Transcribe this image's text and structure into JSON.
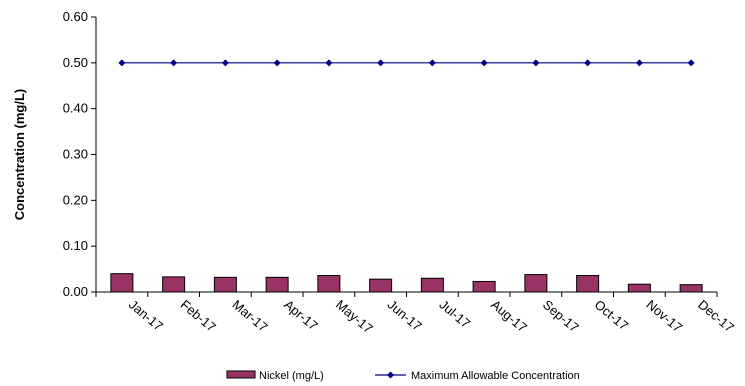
{
  "chart_data": {
    "type": "bar",
    "categories": [
      "Jan-17",
      "Feb-17",
      "Mar-17",
      "Apr-17",
      "May-17",
      "Jun-17",
      "Jul-17",
      "Aug-17",
      "Sep-17",
      "Oct-17",
      "Nov-17",
      "Dec-17"
    ],
    "series": [
      {
        "name": "Nickel (mg/L)",
        "type": "bar",
        "color": "#993366",
        "values": [
          0.04,
          0.033,
          0.032,
          0.032,
          0.036,
          0.028,
          0.03,
          0.023,
          0.038,
          0.036,
          0.017,
          0.016
        ]
      },
      {
        "name": "Maximum Allowable Concentration",
        "type": "line",
        "color": "#000080",
        "marker": "diamond",
        "values": [
          0.5,
          0.5,
          0.5,
          0.5,
          0.5,
          0.5,
          0.5,
          0.5,
          0.5,
          0.5,
          0.5,
          0.5
        ]
      }
    ],
    "ylabel": "Concentration (mg/L)",
    "xlabel": "",
    "ylim": [
      0,
      0.6
    ],
    "yticks": [
      "0.00",
      "0.10",
      "0.20",
      "0.30",
      "0.40",
      "0.50",
      "0.60"
    ],
    "grid": false,
    "legend_position": "bottom"
  }
}
